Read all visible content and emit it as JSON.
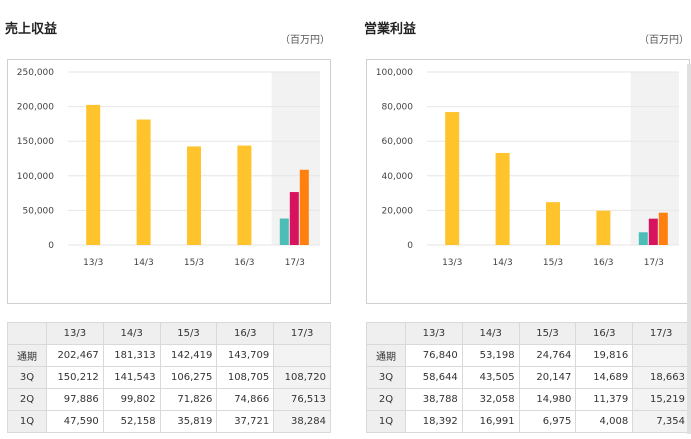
{
  "colors": {
    "annual": "#FFC32B",
    "q1": "#4DBDB8",
    "q2": "#D7135F",
    "q3": "#FF7F0F",
    "highlight": "#f2f2f2",
    "grid": "#e6e6e6"
  },
  "chart_data": [
    {
      "type": "bar",
      "title": "売上収益",
      "unit": "（百万円）",
      "categories": [
        "13/3",
        "14/3",
        "15/3",
        "16/3",
        "17/3"
      ],
      "ylim": [
        0,
        250000
      ],
      "yticks": [
        "0",
        "50,000",
        "100,000",
        "150,000",
        "200,000",
        "250,000"
      ],
      "ytick_values": [
        0,
        50000,
        100000,
        150000,
        200000,
        250000
      ],
      "series": [
        {
          "name": "通期",
          "values": [
            202467,
            181313,
            142419,
            143709,
            null
          ]
        },
        {
          "name": "1Q",
          "values": [
            null,
            null,
            null,
            null,
            38284
          ]
        },
        {
          "name": "2Q",
          "values": [
            null,
            null,
            null,
            null,
            76513
          ]
        },
        {
          "name": "3Q",
          "values": [
            null,
            null,
            null,
            null,
            108720
          ]
        }
      ],
      "highlight_category": "17/3",
      "table": {
        "headers": [
          "13/3",
          "14/3",
          "15/3",
          "16/3",
          "17/3"
        ],
        "rows": [
          {
            "label": "通期",
            "values": [
              "202,467",
              "181,313",
              "142,419",
              "143,709",
              ""
            ]
          },
          {
            "label": "3Q",
            "values": [
              "150,212",
              "141,543",
              "106,275",
              "108,705",
              "108,720"
            ]
          },
          {
            "label": "2Q",
            "values": [
              "97,886",
              "99,802",
              "71,826",
              "74,866",
              "76,513"
            ]
          },
          {
            "label": "1Q",
            "values": [
              "47,590",
              "52,158",
              "35,819",
              "37,721",
              "38,284"
            ]
          }
        ]
      }
    },
    {
      "type": "bar",
      "title": "営業利益",
      "unit": "（百万円）",
      "categories": [
        "13/3",
        "14/3",
        "15/3",
        "16/3",
        "17/3"
      ],
      "ylim": [
        0,
        100000
      ],
      "yticks": [
        "0",
        "20,000",
        "40,000",
        "60,000",
        "80,000",
        "100,000"
      ],
      "ytick_values": [
        0,
        20000,
        40000,
        60000,
        80000,
        100000
      ],
      "series": [
        {
          "name": "通期",
          "values": [
            76840,
            53198,
            24764,
            19816,
            null
          ]
        },
        {
          "name": "1Q",
          "values": [
            null,
            null,
            null,
            null,
            7354
          ]
        },
        {
          "name": "2Q",
          "values": [
            null,
            null,
            null,
            null,
            15219
          ]
        },
        {
          "name": "3Q",
          "values": [
            null,
            null,
            null,
            null,
            18663
          ]
        }
      ],
      "highlight_category": "17/3",
      "table": {
        "headers": [
          "13/3",
          "14/3",
          "15/3",
          "16/3",
          "17/3"
        ],
        "rows": [
          {
            "label": "通期",
            "values": [
              "76,840",
              "53,198",
              "24,764",
              "19,816",
              ""
            ]
          },
          {
            "label": "3Q",
            "values": [
              "58,644",
              "43,505",
              "20,147",
              "14,689",
              "18,663"
            ]
          },
          {
            "label": "2Q",
            "values": [
              "38,788",
              "32,058",
              "14,980",
              "11,379",
              "15,219"
            ]
          },
          {
            "label": "1Q",
            "values": [
              "18,392",
              "16,991",
              "6,975",
              "4,008",
              "7,354"
            ]
          }
        ]
      }
    }
  ]
}
